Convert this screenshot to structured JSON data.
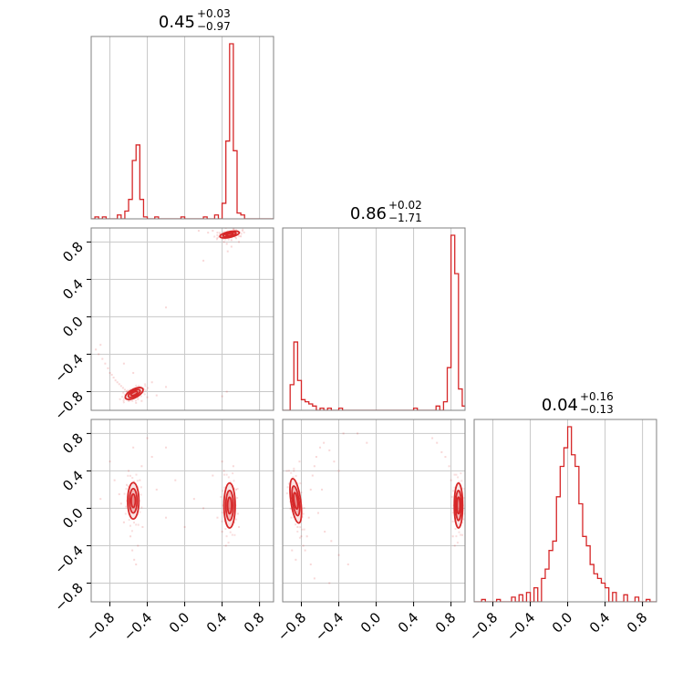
{
  "chart_data": {
    "type": "corner",
    "style": {
      "color": "#d62728",
      "grid": true
    },
    "axis": {
      "range": [
        -1.0,
        0.95
      ],
      "ticks": [
        -0.8,
        -0.4,
        0.0,
        0.4,
        0.8
      ],
      "tick_labels": [
        "−0.8",
        "−0.4",
        "0.0",
        "0.4",
        "0.8"
      ]
    },
    "titles": [
      {
        "value": "0.45",
        "plus": "+0.03",
        "minus": "−0.97"
      },
      {
        "value": "0.86",
        "plus": "+0.02",
        "minus": "−1.71"
      },
      {
        "value": "0.04",
        "plus": "+0.16",
        "minus": "−0.13"
      }
    ],
    "histograms": [
      {
        "param": 0,
        "bin_width": 0.04,
        "bins": [
          [
            -0.96,
            0.01
          ],
          [
            -0.88,
            0.01
          ],
          [
            -0.72,
            0.02
          ],
          [
            -0.64,
            0.04
          ],
          [
            -0.6,
            0.1
          ],
          [
            -0.56,
            0.3
          ],
          [
            -0.52,
            0.38
          ],
          [
            -0.48,
            0.1
          ],
          [
            -0.44,
            0.01
          ],
          [
            -0.32,
            0.01
          ],
          [
            -0.04,
            0.01
          ],
          [
            0.2,
            0.01
          ],
          [
            0.32,
            0.02
          ],
          [
            0.4,
            0.08
          ],
          [
            0.44,
            0.4
          ],
          [
            0.48,
            0.9
          ],
          [
            0.52,
            0.35
          ],
          [
            0.56,
            0.03
          ],
          [
            0.6,
            0.02
          ]
        ]
      },
      {
        "param": 1,
        "bin_width": 0.04,
        "bins": [
          [
            -0.92,
            0.12
          ],
          [
            -0.88,
            0.32
          ],
          [
            -0.84,
            0.14
          ],
          [
            -0.8,
            0.05
          ],
          [
            -0.76,
            0.04
          ],
          [
            -0.72,
            0.03
          ],
          [
            -0.68,
            0.02
          ],
          [
            -0.6,
            0.01
          ],
          [
            -0.52,
            0.01
          ],
          [
            -0.4,
            0.01
          ],
          [
            0.4,
            0.01
          ],
          [
            0.64,
            0.02
          ],
          [
            0.72,
            0.04
          ],
          [
            0.76,
            0.2
          ],
          [
            0.8,
            0.82
          ],
          [
            0.84,
            0.64
          ],
          [
            0.88,
            0.1
          ],
          [
            0.92,
            0.02
          ]
        ]
      },
      {
        "param": 2,
        "bin_width": 0.04,
        "bins": [
          [
            -0.92,
            0.01
          ],
          [
            -0.76,
            0.01
          ],
          [
            -0.6,
            0.02
          ],
          [
            -0.52,
            0.03
          ],
          [
            -0.44,
            0.04
          ],
          [
            -0.36,
            0.06
          ],
          [
            -0.28,
            0.1
          ],
          [
            -0.24,
            0.14
          ],
          [
            -0.2,
            0.22
          ],
          [
            -0.16,
            0.26
          ],
          [
            -0.12,
            0.45
          ],
          [
            -0.08,
            0.58
          ],
          [
            -0.04,
            0.66
          ],
          [
            0.0,
            0.75
          ],
          [
            0.04,
            0.63
          ],
          [
            0.08,
            0.58
          ],
          [
            0.12,
            0.42
          ],
          [
            0.16,
            0.28
          ],
          [
            0.2,
            0.24
          ],
          [
            0.24,
            0.16
          ],
          [
            0.28,
            0.12
          ],
          [
            0.32,
            0.1
          ],
          [
            0.36,
            0.08
          ],
          [
            0.4,
            0.06
          ],
          [
            0.48,
            0.04
          ],
          [
            0.6,
            0.03
          ],
          [
            0.72,
            0.02
          ],
          [
            0.84,
            0.01
          ]
        ]
      }
    ],
    "pairs": [
      {
        "x_param": 0,
        "y_param": 1,
        "clusters": [
          {
            "cx": 0.48,
            "cy": 0.88,
            "sx": 0.07,
            "sy": 0.02,
            "rot": -12
          },
          {
            "cx": -0.54,
            "cy": -0.82,
            "sx": 0.07,
            "sy": 0.03,
            "rot": -28
          }
        ],
        "scatter": [
          [
            -0.95,
            -0.35
          ],
          [
            -0.92,
            -0.4
          ],
          [
            -0.88,
            -0.45
          ],
          [
            -0.85,
            -0.5
          ],
          [
            -0.82,
            -0.55
          ],
          [
            -0.8,
            -0.6
          ],
          [
            -0.78,
            -0.62
          ],
          [
            -0.76,
            -0.65
          ],
          [
            -0.74,
            -0.68
          ],
          [
            -0.72,
            -0.7
          ],
          [
            -0.7,
            -0.72
          ],
          [
            -0.68,
            -0.74
          ],
          [
            -0.66,
            -0.76
          ],
          [
            -0.64,
            -0.78
          ],
          [
            -0.62,
            -0.8
          ],
          [
            -0.6,
            -0.79
          ],
          [
            -0.58,
            -0.83
          ],
          [
            -0.56,
            -0.86
          ],
          [
            -0.5,
            -0.88
          ],
          [
            -0.46,
            -0.9
          ],
          [
            -0.4,
            -0.86
          ],
          [
            -0.3,
            -0.84
          ],
          [
            -0.2,
            -0.75
          ],
          [
            -0.35,
            -0.7
          ],
          [
            -0.55,
            -0.6
          ],
          [
            -0.65,
            -0.5
          ],
          [
            -0.6,
            -0.9
          ],
          [
            -0.52,
            -0.92
          ],
          [
            -0.44,
            -0.78
          ],
          [
            -0.9,
            -0.3
          ],
          [
            0.3,
            0.92
          ],
          [
            0.35,
            0.9
          ],
          [
            0.4,
            0.86
          ],
          [
            0.42,
            0.8
          ],
          [
            0.45,
            0.78
          ],
          [
            0.5,
            0.82
          ],
          [
            0.55,
            0.84
          ],
          [
            0.58,
            0.8
          ],
          [
            0.52,
            0.94
          ],
          [
            0.44,
            0.95
          ],
          [
            0.38,
            0.88
          ],
          [
            0.6,
            0.86
          ],
          [
            0.25,
            0.9
          ],
          [
            0.15,
            0.92
          ],
          [
            0.46,
            0.7
          ],
          [
            0.4,
            -0.85
          ],
          [
            0.45,
            -0.8
          ],
          [
            0.2,
            0.6
          ],
          [
            -0.2,
            0.1
          ],
          [
            0.5,
            0.75
          ]
        ]
      },
      {
        "x_param": 0,
        "y_param": 2,
        "clusters": [
          {
            "cx": -0.55,
            "cy": 0.08,
            "sx": 0.04,
            "sy": 0.13,
            "rot": 0
          },
          {
            "cx": 0.48,
            "cy": 0.03,
            "sx": 0.04,
            "sy": 0.16,
            "rot": 0
          }
        ],
        "scatter": [
          [
            -0.62,
            0.25
          ],
          [
            -0.6,
            0.4
          ],
          [
            -0.58,
            -0.3
          ],
          [
            -0.56,
            -0.45
          ],
          [
            -0.54,
            -0.55
          ],
          [
            -0.52,
            -0.6
          ],
          [
            -0.5,
            -0.4
          ],
          [
            -0.48,
            0.3
          ],
          [
            -0.46,
            0.45
          ],
          [
            -0.45,
            -0.2
          ],
          [
            -0.68,
            0.05
          ],
          [
            -0.7,
            0.15
          ],
          [
            -0.65,
            -0.15
          ],
          [
            -0.75,
            0.3
          ],
          [
            -0.8,
            0.5
          ],
          [
            -0.9,
            0.1
          ],
          [
            -0.3,
            0.2
          ],
          [
            -0.2,
            -0.1
          ],
          [
            -0.1,
            0.3
          ],
          [
            0.0,
            -0.2
          ],
          [
            0.1,
            0.1
          ],
          [
            0.2,
            0.0
          ],
          [
            0.3,
            0.35
          ],
          [
            0.35,
            -0.1
          ],
          [
            0.4,
            -0.25
          ],
          [
            0.42,
            0.4
          ],
          [
            0.55,
            0.2
          ],
          [
            0.58,
            -0.2
          ],
          [
            0.52,
            0.45
          ],
          [
            0.44,
            -0.4
          ],
          [
            0.4,
            0.5
          ],
          [
            -0.4,
            0.75
          ],
          [
            -0.2,
            0.65
          ],
          [
            -0.35,
            0.55
          ],
          [
            -0.55,
            0.65
          ]
        ]
      },
      {
        "x_param": 1,
        "y_param": 2,
        "clusters": [
          {
            "cx": -0.86,
            "cy": 0.08,
            "sx": 0.035,
            "sy": 0.16,
            "rot": -8
          },
          {
            "cx": 0.88,
            "cy": 0.03,
            "sx": 0.03,
            "sy": 0.16,
            "rot": 0
          }
        ],
        "scatter": [
          [
            -0.84,
            -0.2
          ],
          [
            -0.8,
            -0.3
          ],
          [
            -0.78,
            -0.4
          ],
          [
            -0.76,
            -0.45
          ],
          [
            -0.74,
            -0.3
          ],
          [
            -0.72,
            -0.1
          ],
          [
            -0.7,
            0.2
          ],
          [
            -0.68,
            0.35
          ],
          [
            -0.66,
            0.45
          ],
          [
            -0.64,
            0.55
          ],
          [
            -0.6,
            0.65
          ],
          [
            -0.56,
            0.7
          ],
          [
            -0.5,
            0.62
          ],
          [
            -0.45,
            0.5
          ],
          [
            -0.4,
            0.4
          ],
          [
            -0.58,
            0.2
          ],
          [
            -0.62,
            -0.05
          ],
          [
            -0.55,
            -0.25
          ],
          [
            -0.48,
            -0.35
          ],
          [
            -0.4,
            -0.5
          ],
          [
            -0.3,
            -0.6
          ],
          [
            -0.7,
            -0.6
          ],
          [
            -0.66,
            -0.75
          ],
          [
            -0.5,
            -0.8
          ],
          [
            0.6,
            0.75
          ],
          [
            0.65,
            0.7
          ],
          [
            0.7,
            0.6
          ],
          [
            0.74,
            0.55
          ],
          [
            0.78,
            0.45
          ],
          [
            0.8,
            0.3
          ],
          [
            0.82,
            -0.3
          ],
          [
            0.84,
            -0.4
          ],
          [
            -0.2,
            0.8
          ],
          [
            -0.1,
            0.7
          ],
          [
            -0.35,
            0.8
          ],
          [
            -0.9,
            -0.45
          ],
          [
            -0.88,
            0.4
          ],
          [
            -0.82,
            0.5
          ],
          [
            -0.86,
            -0.55
          ]
        ]
      }
    ]
  }
}
